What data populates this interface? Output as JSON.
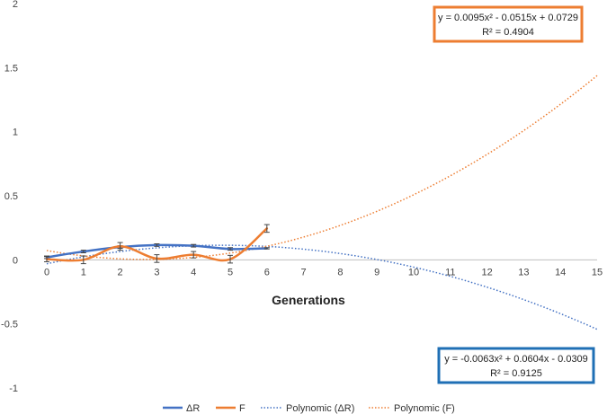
{
  "chart_data": {
    "type": "line",
    "xlabel": "Generations",
    "ylabel": "",
    "title": "",
    "xlim": [
      0,
      15
    ],
    "ylim": [
      -1,
      2
    ],
    "x_ticks": [
      0,
      1,
      2,
      3,
      4,
      5,
      6,
      7,
      8,
      9,
      10,
      11,
      12,
      13,
      14,
      15
    ],
    "y_ticks": [
      -1,
      -0.5,
      0,
      0.5,
      1,
      1.5,
      2
    ],
    "y_tick_labels": [
      "-1",
      "-0.5",
      "0",
      "0.5",
      "1",
      "1.5",
      "2"
    ],
    "grid": false,
    "legend_position": "bottom",
    "series": [
      {
        "name": "ΔR",
        "color": "#4472c4",
        "style": "smooth-line",
        "x": [
          0,
          1,
          2,
          3,
          4,
          5,
          6
        ],
        "values": [
          0.02,
          0.065,
          0.1,
          0.115,
          0.11,
          0.085,
          0.09
        ],
        "error": [
          0.01,
          0.01,
          0.01,
          0.01,
          0.01,
          0.01,
          0.005
        ]
      },
      {
        "name": "F",
        "color": "#ed7d31",
        "style": "smooth-line",
        "x": [
          0,
          1,
          2,
          3,
          4,
          5,
          6
        ],
        "values": [
          0.005,
          0.0,
          0.105,
          0.01,
          0.04,
          0.005,
          0.245
        ],
        "error": [
          0.02,
          0.03,
          0.03,
          0.03,
          0.025,
          0.03,
          0.03
        ]
      },
      {
        "name": "Polynomic (ΔR)",
        "color": "#4472c4",
        "style": "dotted-trendline",
        "coefficients": [
          -0.0063,
          0.0604,
          -0.0309
        ],
        "x_range": [
          0,
          15
        ]
      },
      {
        "name": "Polynomic (F)",
        "color": "#ed7d31",
        "style": "dotted-trendline",
        "coefficients": [
          0.0095,
          -0.0515,
          0.0729
        ],
        "x_range": [
          0,
          15
        ]
      }
    ],
    "annotations": [
      {
        "equation": "y = 0.0095x² - 0.0515x + 0.0729",
        "r2": "R² = 0.4904",
        "border_color": "#ed7d31",
        "placement": "top-right"
      },
      {
        "equation": "y = -0.0063x² + 0.0604x - 0.0309",
        "r2": "R² = 0.9125",
        "border_color": "#1f6fb5",
        "placement": "bottom-right"
      }
    ]
  }
}
